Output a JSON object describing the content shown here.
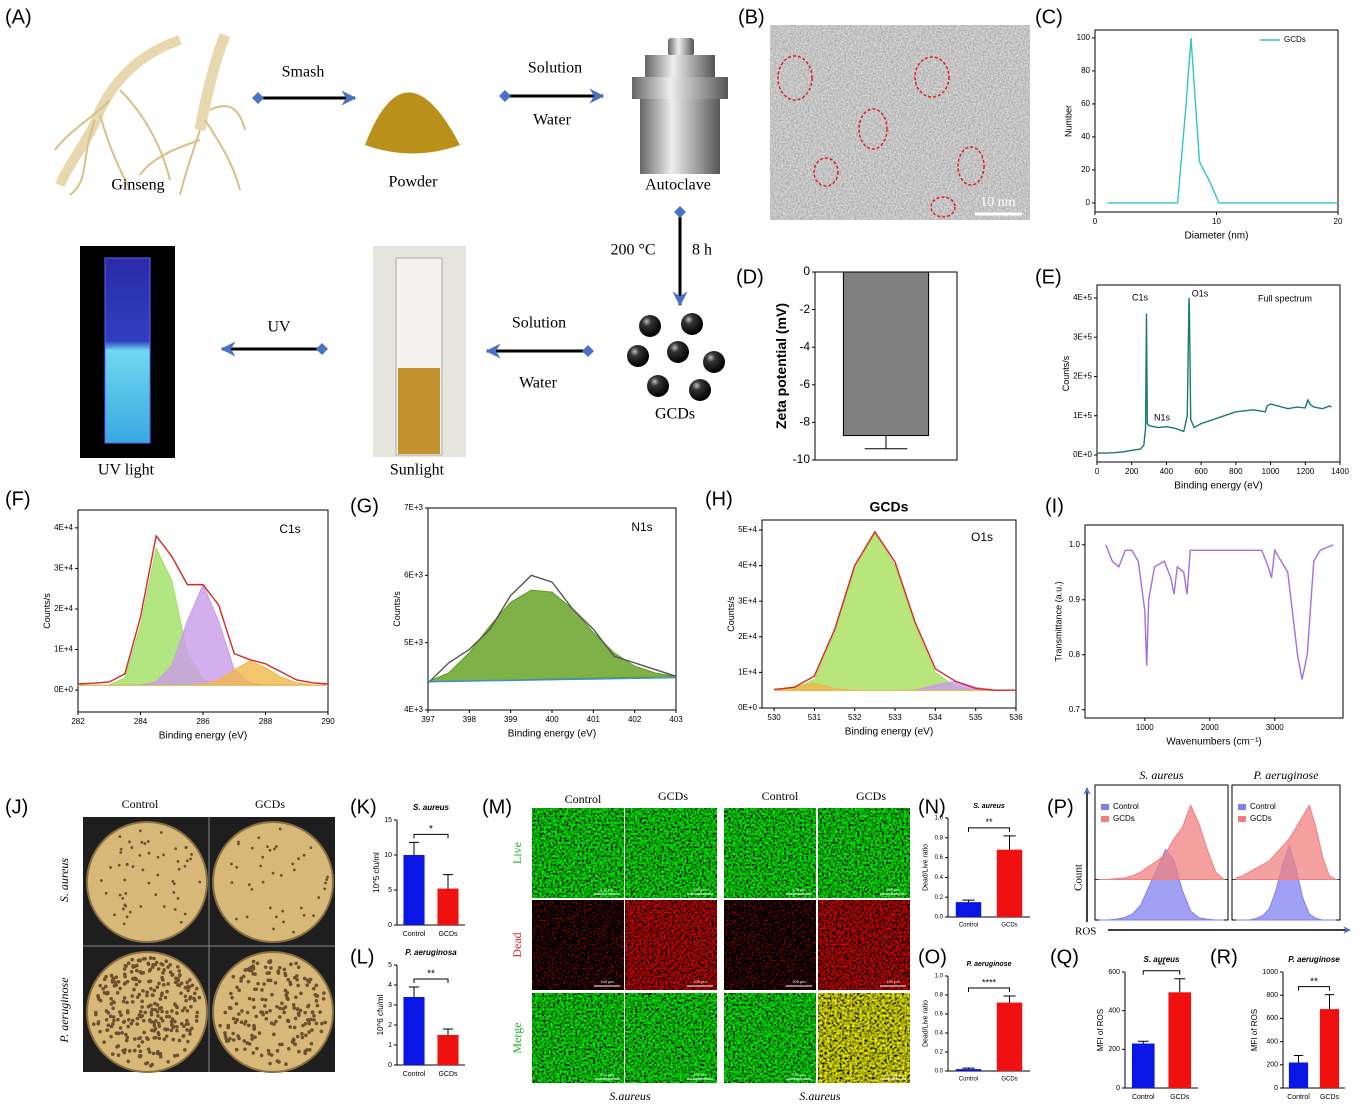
{
  "panel_labels": [
    "(A)",
    "(B)",
    "(C)",
    "(D)",
    "(E)",
    "(F)",
    "(G)",
    "(H)",
    "(I)",
    "(J)",
    "(K)",
    "(L)",
    "(M)",
    "(N)",
    "(O)",
    "(P)",
    "(Q)",
    "(R)"
  ],
  "scheme": {
    "items": [
      "Ginseng",
      "Powder",
      "Autoclave",
      "GCDs",
      "Sunlight",
      "UV light"
    ],
    "steps": [
      "Smash",
      "Solution",
      "Water",
      "200 °C",
      "8 h",
      "Solution",
      "Water",
      "UV"
    ]
  },
  "tem": {
    "scale_bar": "10 nm"
  },
  "plates": {
    "columns": [
      "Control",
      "GCDs"
    ],
    "rows": [
      "S. aureus",
      "P. aeruginose"
    ]
  },
  "microscopy": {
    "columns": [
      "Control",
      "GCDs",
      "Control",
      "GCDs"
    ],
    "rows": [
      "Live",
      "Dead",
      "Merge"
    ],
    "groups": [
      "S.aureus",
      "S.aureus"
    ],
    "scale_bar": "100 µm"
  },
  "chart_data": [
    {
      "type": "line",
      "xlabel": "Diameter (nm)",
      "ylabel": "Number",
      "x": [
        1,
        6.8,
        7.5,
        7.9,
        8.6,
        9.5,
        10.2,
        20
      ],
      "series": [
        {
          "name": "GCDs",
          "color": "#33c6c3",
          "values": [
            0,
            0,
            60,
            100,
            25,
            12,
            0,
            0
          ]
        }
      ],
      "xlim": [
        0,
        20
      ],
      "xticks": [
        0,
        10,
        20
      ],
      "ylim": [
        -5.5,
        104.8
      ],
      "yticks": [
        0,
        20,
        40,
        60,
        80,
        100
      ],
      "legend": "upper right",
      "frame": true
    },
    {
      "type": "bar",
      "ylabel": "Zeta potential (mV)",
      "categories": [
        null
      ],
      "values": [
        -8.7
      ],
      "errors": [
        0.7
      ],
      "color": "#808080",
      "ylim": [
        -10,
        0
      ],
      "yticks": [
        0,
        -2,
        -4,
        -6,
        -8,
        -10
      ],
      "frame": true
    },
    {
      "type": "line",
      "xlabel": "Binding energy (eV)",
      "ylabel": "Counts/s",
      "annotations": [
        "C1s",
        "N1s",
        "O1s",
        "Full spectrum"
      ],
      "x": [
        0,
        50,
        100,
        150,
        200,
        250,
        270,
        280,
        285,
        290,
        300,
        350,
        400,
        450,
        500,
        520,
        530,
        532,
        540,
        560,
        600,
        700,
        800,
        900,
        970,
        980,
        1000,
        1100,
        1150,
        1200,
        1215,
        1230,
        1250,
        1300,
        1340,
        1350
      ],
      "series": [
        {
          "color": "#1b7a6e",
          "values": [
            5000,
            5000,
            6000,
            8000,
            12000,
            15000,
            25000,
            70000,
            360000,
            80000,
            75000,
            70000,
            72000,
            68000,
            60000,
            100000,
            400000,
            380000,
            90000,
            70000,
            80000,
            95000,
            110000,
            115000,
            110000,
            125000,
            130000,
            118000,
            122000,
            120000,
            140000,
            128000,
            122000,
            118000,
            125000,
            122000
          ]
        }
      ],
      "xlim": [
        0,
        1400
      ],
      "xticks": [
        0,
        200,
        400,
        600,
        800,
        1000,
        1200,
        1400
      ],
      "ylim": [
        -17800,
        433000
      ],
      "yticks": [
        {
          "value": 0,
          "label": "0E+0"
        },
        {
          "value": 100000,
          "label": "1E+5"
        },
        {
          "value": 200000,
          "label": "2E+5"
        },
        {
          "value": 300000,
          "label": "3E+5"
        },
        {
          "value": 400000,
          "label": "4E+5"
        }
      ],
      "frame": true
    },
    {
      "type": "line",
      "xlabel": "Binding energy (eV)",
      "ylabel": "Counts/s",
      "annotations": [
        "C1s"
      ],
      "x": [
        282,
        282.5,
        283,
        283.5,
        284,
        284.5,
        285,
        285.5,
        286,
        286.5,
        287,
        287.5,
        288,
        288.5,
        289,
        289.5,
        290
      ],
      "series": [
        {
          "color": "#9fe060",
          "fill": true,
          "values": [
            1200,
            1200,
            1300,
            3000,
            16000,
            35000,
            27000,
            9000,
            2500,
            1300,
            1200,
            1200,
            1200,
            1200,
            1200,
            1200,
            1200
          ]
        },
        {
          "color": "#c89be8",
          "fill": true,
          "values": [
            1200,
            1200,
            1200,
            1200,
            1300,
            2000,
            6000,
            17000,
            26000,
            17000,
            5000,
            1800,
            1300,
            1200,
            1200,
            1200,
            1200
          ]
        },
        {
          "color": "#f0b84a",
          "fill": true,
          "values": [
            1200,
            1200,
            1200,
            1200,
            1200,
            1200,
            1200,
            1200,
            1400,
            2500,
            5000,
            7200,
            5500,
            3200,
            1800,
            1300,
            1200
          ]
        },
        {
          "color": "#d62728",
          "values": [
            1500,
            1700,
            2000,
            4000,
            18000,
            38000,
            33000,
            26000,
            26000,
            21000,
            9000,
            7500,
            6500,
            4500,
            2500,
            1800,
            1500
          ]
        }
      ],
      "xlim": [
        282,
        290
      ],
      "xticks": [
        282,
        284,
        286,
        288,
        290
      ],
      "ylim": [
        -5400,
        44400
      ],
      "yticks": [
        {
          "value": 0,
          "label": "0E+0"
        },
        {
          "value": 10000,
          "label": "1E+4"
        },
        {
          "value": 20000,
          "label": "2E+4"
        },
        {
          "value": 30000,
          "label": "3E+4"
        },
        {
          "value": 40000,
          "label": "4E+4"
        }
      ],
      "frame": true
    },
    {
      "type": "line",
      "xlabel": "Binding energy (eV)",
      "ylabel": "Counts/s",
      "annotations": [
        "N1s"
      ],
      "x": [
        397,
        397.5,
        398,
        398.5,
        399,
        399.5,
        400,
        400.5,
        401,
        401.5,
        402,
        402.5,
        403
      ],
      "series": [
        {
          "color": "#5e9e1a",
          "fill": true,
          "values": [
            4420,
            4550,
            4850,
            5250,
            5600,
            5780,
            5750,
            5500,
            5150,
            4850,
            4650,
            4550,
            4500
          ]
        },
        {
          "color": "#555555",
          "values": [
            4400,
            4700,
            4900,
            5200,
            5700,
            6000,
            5900,
            5500,
            5200,
            4800,
            4700,
            4600,
            4500
          ]
        },
        {
          "color": "#3b8ed8",
          "values": [
            4420,
            4425,
            4430,
            4435,
            4440,
            4445,
            4450,
            4455,
            4460,
            4465,
            4470,
            4475,
            4480
          ]
        }
      ],
      "xlim": [
        397,
        403
      ],
      "xticks": [
        397,
        398,
        399,
        400,
        401,
        402,
        403
      ],
      "ylim": [
        4000,
        7000
      ],
      "yticks": [
        {
          "value": 4000,
          "label": "4E+3"
        },
        {
          "value": 5000,
          "label": "5E+3"
        },
        {
          "value": 6000,
          "label": "6E+3"
        },
        {
          "value": 7000,
          "label": "7E+3"
        }
      ],
      "frame": true
    },
    {
      "type": "line",
      "title": "GCDs",
      "xlabel": "Binding energy (eV)",
      "ylabel": "Counts/s",
      "annotations": [
        "O1s"
      ],
      "x": [
        530,
        530.5,
        531,
        531.5,
        532,
        532.5,
        533,
        533.5,
        534,
        534.5,
        535,
        535.5,
        536
      ],
      "series": [
        {
          "color": "#a6e05a",
          "fill": true,
          "values": [
            4900,
            5400,
            8000,
            21000,
            39000,
            49000,
            40000,
            23000,
            10000,
            6000,
            5000,
            4900,
            4900
          ]
        },
        {
          "color": "#c89be8",
          "fill": true,
          "values": [
            4900,
            4900,
            4900,
            4900,
            4900,
            4900,
            4900,
            5000,
            6500,
            7500,
            5800,
            4900,
            4900
          ]
        },
        {
          "color": "#f0b84a",
          "fill": true,
          "values": [
            4900,
            6000,
            7000,
            5500,
            4900,
            4900,
            4900,
            4900,
            4900,
            4900,
            4900,
            4900,
            4900
          ]
        },
        {
          "color": "#d62728",
          "values": [
            5200,
            5800,
            9000,
            22000,
            40000,
            49500,
            41000,
            24000,
            11000,
            7500,
            5500,
            5000,
            5000
          ]
        }
      ],
      "xlim": [
        529.7,
        536
      ],
      "xticks": [
        530,
        531,
        532,
        533,
        534,
        535,
        536
      ],
      "ylim": [
        0,
        52800
      ],
      "yticks": [
        {
          "value": 0,
          "label": "0E+0"
        },
        {
          "value": 10000,
          "label": "1E+4"
        },
        {
          "value": 20000,
          "label": "2E+4"
        },
        {
          "value": 30000,
          "label": "3E+4"
        },
        {
          "value": 40000,
          "label": "4E+4"
        },
        {
          "value": 50000,
          "label": "5E+4"
        }
      ],
      "frame": true
    },
    {
      "type": "line",
      "xlabel": "Wavenumbers (cm⁻¹)",
      "ylabel": "Transmittance (a.u.)",
      "x": [
        400,
        500,
        600,
        700,
        800,
        900,
        1000,
        1030,
        1060,
        1150,
        1300,
        1400,
        1450,
        1500,
        1600,
        1650,
        1700,
        2000,
        2500,
        2800,
        2900,
        2950,
        3000,
        3200,
        3350,
        3420,
        3500,
        3600,
        3700,
        3900
      ],
      "series": [
        {
          "color": "#a070e0",
          "values": [
            1.0,
            0.97,
            0.96,
            0.99,
            0.99,
            0.97,
            0.88,
            0.78,
            0.9,
            0.96,
            0.97,
            0.94,
            0.91,
            0.96,
            0.95,
            0.91,
            0.99,
            0.99,
            0.99,
            0.99,
            0.96,
            0.94,
            0.99,
            0.95,
            0.8,
            0.755,
            0.8,
            0.97,
            0.99,
            1.0
          ]
        }
      ],
      "xlim": [
        80,
        4050
      ],
      "xticks": [
        1000,
        2000,
        3000
      ],
      "ylim": [
        0.685,
        1.036
      ],
      "yticks": [
        0.7,
        0.8,
        0.9,
        {
          "value": 1,
          "label": "1.0"
        }
      ],
      "frame": true
    },
    {
      "type": "bar",
      "title": "S. aureus",
      "ylabel": "10^5 cfu/ml",
      "categories": [
        "Control",
        "GCDs"
      ],
      "values": [
        10,
        5.2
      ],
      "errors": [
        1.8,
        2
      ],
      "colors": [
        "#0a16e6",
        "#f01010"
      ],
      "ylim": [
        0,
        15
      ],
      "yticks": [
        0,
        5,
        10,
        15
      ],
      "significance": "*"
    },
    {
      "type": "bar",
      "title": "P. aeruginosa",
      "ylabel": "10^6 cfu/ml",
      "categories": [
        "Control",
        "GCDs"
      ],
      "values": [
        3.4,
        1.5
      ],
      "errors": [
        0.5,
        0.3
      ],
      "colors": [
        "#0a16e6",
        "#f01010"
      ],
      "ylim": [
        0,
        5
      ],
      "yticks": [
        0,
        1,
        2,
        3,
        4,
        5
      ],
      "significance": "**"
    },
    {
      "type": "bar",
      "title": "S. aureus",
      "ylabel": "Dead/Live ratio",
      "categories": [
        "Control",
        "GCDs"
      ],
      "values": [
        0.15,
        0.68
      ],
      "errors": [
        0.02,
        0.14
      ],
      "colors": [
        "#0a16e6",
        "#f01010"
      ],
      "ylim": [
        0,
        1
      ],
      "yticks": [
        {
          "value": 0,
          "label": "0.0"
        },
        0.2,
        0.4,
        0.6,
        0.8,
        {
          "value": 1,
          "label": "1.0"
        }
      ],
      "significance": "**"
    },
    {
      "type": "bar",
      "title": "P. aeruginose",
      "ylabel": "Dead/Live ratio",
      "categories": [
        "Control",
        "GCDs"
      ],
      "values": [
        0.02,
        0.72
      ],
      "errors": [
        0.01,
        0.07
      ],
      "colors": [
        "#0a16e6",
        "#f01010"
      ],
      "ylim": [
        0,
        1
      ],
      "yticks": [
        {
          "value": 0,
          "label": "0.0"
        },
        0.2,
        0.4,
        0.6,
        0.8,
        {
          "value": 1,
          "label": "1.0"
        }
      ],
      "significance": "****"
    },
    {
      "type": "bar",
      "title": "S. aureus",
      "ylabel": "MFI of ROS",
      "categories": [
        "Control",
        "GCDs"
      ],
      "values": [
        230,
        495
      ],
      "errors": [
        12,
        70
      ],
      "colors": [
        "#0a16e6",
        "#f01010"
      ],
      "ylim": [
        0,
        600
      ],
      "yticks": [
        0,
        200,
        400,
        600
      ],
      "significance": "**"
    },
    {
      "type": "bar",
      "title": "P. aeruginose",
      "ylabel": "MFI of ROS",
      "categories": [
        "Control",
        "GCDs"
      ],
      "values": [
        220,
        680
      ],
      "errors": [
        60,
        125
      ],
      "colors": [
        "#0a16e6",
        "#f01010"
      ],
      "ylim": [
        0,
        1000
      ],
      "yticks": [
        0,
        200,
        400,
        600,
        800,
        1000
      ],
      "significance": "**"
    },
    {
      "type": "area",
      "title": "S. aureus",
      "ylabel": "Count",
      "xlabel": "ROS",
      "legend": "upper left",
      "ylim": [
        0,
        100
      ],
      "series": [
        {
          "name": "Control",
          "color": "#8080f0",
          "values": [
            0,
            0,
            1,
            3,
            8,
            20,
            45,
            70,
            95,
            80,
            40,
            12,
            3,
            1,
            0,
            0
          ]
        },
        {
          "name": "GCDs",
          "color": "#f08080",
          "values": [
            0,
            0,
            1,
            2,
            5,
            10,
            18,
            25,
            35,
            55,
            70,
            100,
            75,
            40,
            10,
            0
          ]
        }
      ]
    },
    {
      "type": "area",
      "title": "P. aeruginose",
      "legend": "upper left",
      "ylim": [
        0,
        100
      ],
      "series": [
        {
          "name": "Control",
          "color": "#8080f0",
          "values": [
            0,
            0,
            0,
            2,
            6,
            15,
            40,
            75,
            100,
            70,
            30,
            8,
            2,
            0,
            0,
            0
          ]
        },
        {
          "name": "GCDs",
          "color": "#f08080",
          "values": [
            2,
            5,
            10,
            15,
            20,
            25,
            35,
            45,
            55,
            70,
            85,
            100,
            70,
            30,
            5,
            0
          ]
        }
      ]
    }
  ]
}
